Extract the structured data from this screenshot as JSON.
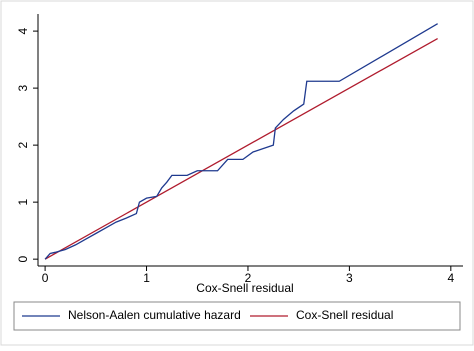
{
  "chart_data": {
    "type": "line",
    "x_label": "Cox-Snell residual",
    "xlim": [
      -0.07,
      4.12
    ],
    "ylim": [
      -0.12,
      4.3
    ],
    "xticks": [
      0,
      1,
      2,
      3,
      4
    ],
    "yticks": [
      0,
      1,
      2,
      3,
      4
    ],
    "series": [
      {
        "name": "Nelson-Aalen cumulative hazard",
        "color": "#1f3a8f",
        "x": [
          0,
          0.05,
          0.1,
          0.2,
          0.3,
          0.4,
          0.5,
          0.6,
          0.7,
          0.8,
          0.9,
          0.93,
          1.0,
          1.1,
          1.15,
          1.2,
          1.25,
          1.4,
          1.5,
          1.7,
          1.8,
          1.95,
          2.05,
          2.25,
          2.27,
          2.35,
          2.45,
          2.55,
          2.58,
          2.9,
          3.87
        ],
        "values": [
          0,
          0.1,
          0.12,
          0.17,
          0.25,
          0.35,
          0.45,
          0.55,
          0.65,
          0.72,
          0.8,
          1.0,
          1.07,
          1.1,
          1.25,
          1.35,
          1.47,
          1.47,
          1.55,
          1.55,
          1.75,
          1.75,
          1.88,
          2.0,
          2.3,
          2.45,
          2.6,
          2.72,
          3.12,
          3.12,
          4.13
        ]
      },
      {
        "name": "Cox-Snell residual",
        "color": "#b01c2e",
        "x": [
          0,
          3.87
        ],
        "values": [
          0,
          3.87
        ]
      }
    ]
  }
}
